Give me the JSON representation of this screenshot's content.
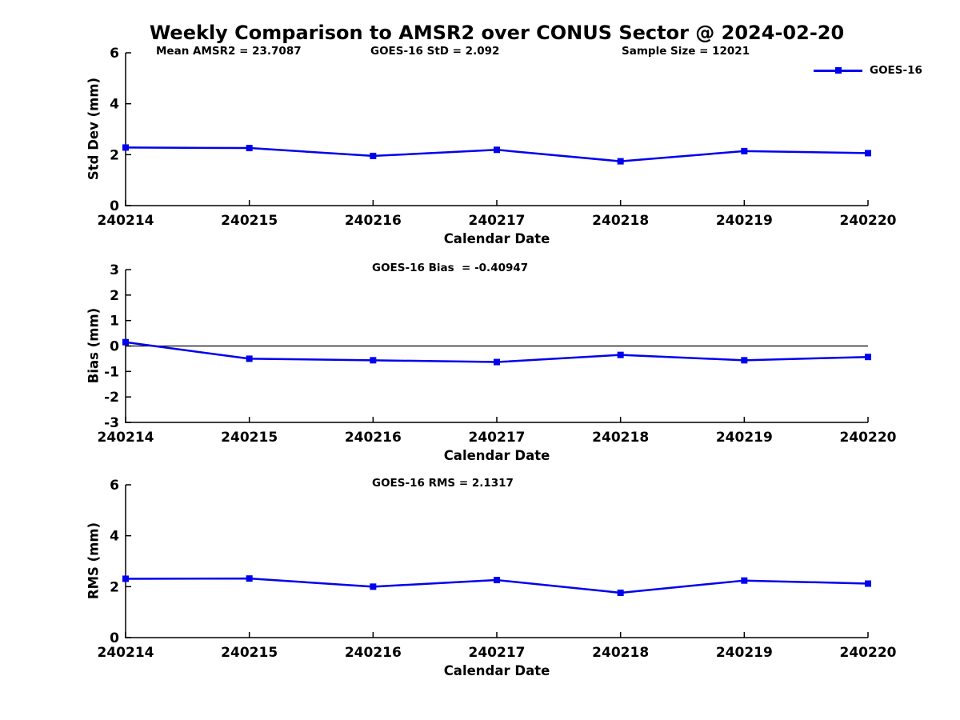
{
  "figure_title": "Weekly Comparison to AMSR2 over CONUS Sector @ 2024-02-20",
  "legend": {
    "label": "GOES-16",
    "marker": "filled-square"
  },
  "colors": {
    "line": "#0000ee",
    "axis": "#000000",
    "zero_line": "#000000",
    "text": "#000000",
    "background": "#ffffff"
  },
  "chart_data": [
    {
      "type": "line",
      "ylabel": "Std Dev (mm)",
      "xlabel": "Calendar Date",
      "ylim": [
        0,
        6
      ],
      "yticks": [
        0,
        2,
        4,
        6
      ],
      "categories": [
        "240214",
        "240215",
        "240216",
        "240217",
        "240218",
        "240219",
        "240220"
      ],
      "series": [
        {
          "name": "GOES-16",
          "values": [
            2.28,
            2.26,
            1.95,
            2.19,
            1.74,
            2.14,
            2.06
          ]
        }
      ],
      "annotations": [
        "Mean AMSR2 = 23.7087",
        "GOES-16 StD = 2.092",
        "Sample Size = 12021"
      ],
      "grid": false,
      "zero_line": false,
      "legend_position": "top-right-outside"
    },
    {
      "type": "line",
      "ylabel": "Bias (mm)",
      "xlabel": "Calendar Date",
      "ylim": [
        -3,
        3
      ],
      "yticks": [
        -3,
        -2,
        -1,
        0,
        1,
        2,
        3
      ],
      "categories": [
        "240214",
        "240215",
        "240216",
        "240217",
        "240218",
        "240219",
        "240220"
      ],
      "series": [
        {
          "name": "GOES-16",
          "values": [
            0.15,
            -0.5,
            -0.56,
            -0.63,
            -0.35,
            -0.56,
            -0.43
          ]
        }
      ],
      "annotations": [
        "GOES-16 Bias  = -0.40947"
      ],
      "grid": false,
      "zero_line": true
    },
    {
      "type": "line",
      "ylabel": "RMS (mm)",
      "xlabel": "Calendar Date",
      "ylim": [
        0,
        6
      ],
      "yticks": [
        0,
        2,
        4,
        6
      ],
      "categories": [
        "240214",
        "240215",
        "240216",
        "240217",
        "240218",
        "240219",
        "240220"
      ],
      "series": [
        {
          "name": "GOES-16",
          "values": [
            2.31,
            2.32,
            2.0,
            2.26,
            1.76,
            2.24,
            2.12
          ]
        }
      ],
      "annotations": [
        "GOES-16 RMS = 2.1317"
      ],
      "grid": false,
      "zero_line": false
    }
  ]
}
